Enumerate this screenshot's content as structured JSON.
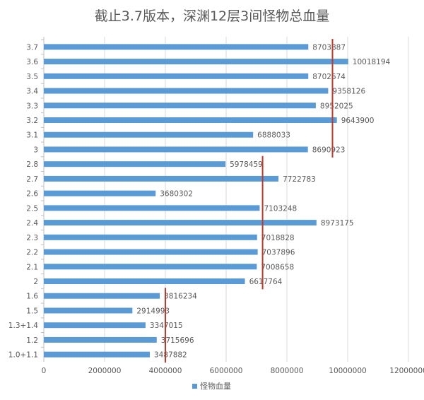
{
  "chart_data": {
    "type": "bar",
    "orientation": "horizontal",
    "title": "截止3.7版本，深渊12层3间怪物总血量",
    "categories": [
      "3.7",
      "3.6",
      "3.5",
      "3.4",
      "3.3",
      "3.2",
      "3.1",
      "3",
      "2.8",
      "2.7",
      "2.6",
      "2.5",
      "2.4",
      "2.3",
      "2.2",
      "2.1",
      "2",
      "1.6",
      "1.5",
      "1.3+1.4",
      "1.2",
      "1.0+1.1"
    ],
    "series": [
      {
        "name": "怪物血量",
        "values": [
          8703887,
          10018194,
          8702674,
          9358126,
          8952025,
          9643900,
          6888033,
          8690923,
          5978459,
          7722783,
          3680302,
          7103248,
          8973175,
          7018828,
          7037896,
          7008658,
          6617764,
          3816234,
          2914993,
          3347015,
          3715696,
          3487882
        ],
        "labels": [
          "8703887",
          "10018194",
          "8702674",
          "9358126",
          "8952025",
          "9643900",
          "6888033",
          "8690923",
          "5978459",
          "7722783",
          "3680302",
          "7103248",
          "8973175",
          "7018828",
          "7037896",
          "7008658",
          "6617764",
          "3816234",
          "2914993",
          "3347015",
          "3715696",
          "3487882"
        ]
      }
    ],
    "xlim": [
      0,
      12000000
    ],
    "xticks": [
      "0",
      "2000000",
      "4000000",
      "6000000",
      "8000000",
      "10000000",
      "12000000"
    ],
    "xgrid": true,
    "legend": "bottom",
    "annotations": [
      {
        "type": "reference-line",
        "x": 9500000,
        "from_category": "3.7",
        "to_category": "3"
      },
      {
        "type": "reference-line",
        "x": 7200000,
        "from_category": "2.8",
        "to_category": "2"
      },
      {
        "type": "reference-line",
        "x": 4000000,
        "from_category": "1.6",
        "to_category": "1.0+1.1"
      }
    ],
    "colors": {
      "bar": "#5b9bd5",
      "reference": "#c0392b",
      "grid": "#d9d9d9",
      "text": "#595959"
    }
  }
}
